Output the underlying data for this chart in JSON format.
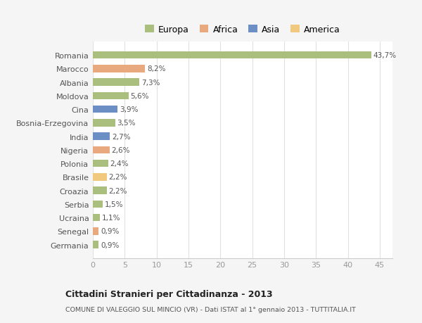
{
  "categories": [
    "Germania",
    "Senegal",
    "Ucraina",
    "Serbia",
    "Croazia",
    "Brasile",
    "Polonia",
    "Nigeria",
    "India",
    "Bosnia-Erzegovina",
    "Cina",
    "Moldova",
    "Albania",
    "Marocco",
    "Romania"
  ],
  "values": [
    0.9,
    0.9,
    1.1,
    1.5,
    2.2,
    2.2,
    2.4,
    2.6,
    2.7,
    3.5,
    3.9,
    5.6,
    7.3,
    8.2,
    43.7
  ],
  "labels": [
    "0,9%",
    "0,9%",
    "1,1%",
    "1,5%",
    "2,2%",
    "2,2%",
    "2,4%",
    "2,6%",
    "2,7%",
    "3,5%",
    "3,9%",
    "5,6%",
    "7,3%",
    "8,2%",
    "43,7%"
  ],
  "colors": [
    "#aabf7e",
    "#e8a97e",
    "#aabf7e",
    "#aabf7e",
    "#aabf7e",
    "#f0c97e",
    "#aabf7e",
    "#e8a97e",
    "#6b8ec4",
    "#aabf7e",
    "#6b8ec4",
    "#aabf7e",
    "#aabf7e",
    "#e8a97e",
    "#aabf7e"
  ],
  "legend_labels": [
    "Europa",
    "Africa",
    "Asia",
    "America"
  ],
  "legend_colors": [
    "#aabf7e",
    "#e8a97e",
    "#6b8ec4",
    "#f0c97e"
  ],
  "title": "Cittadini Stranieri per Cittadinanza - 2013",
  "subtitle": "COMUNE DI VALEGGIO SUL MINCIO (VR) - Dati ISTAT al 1° gennaio 2013 - TUTTITALIA.IT",
  "xlim": [
    0,
    47
  ],
  "xticks": [
    0,
    5,
    10,
    15,
    20,
    25,
    30,
    35,
    40,
    45
  ],
  "background_color": "#f5f5f5",
  "plot_bg_color": "#ffffff",
  "grid_color": "#e0e0e0",
  "bar_height": 0.55
}
